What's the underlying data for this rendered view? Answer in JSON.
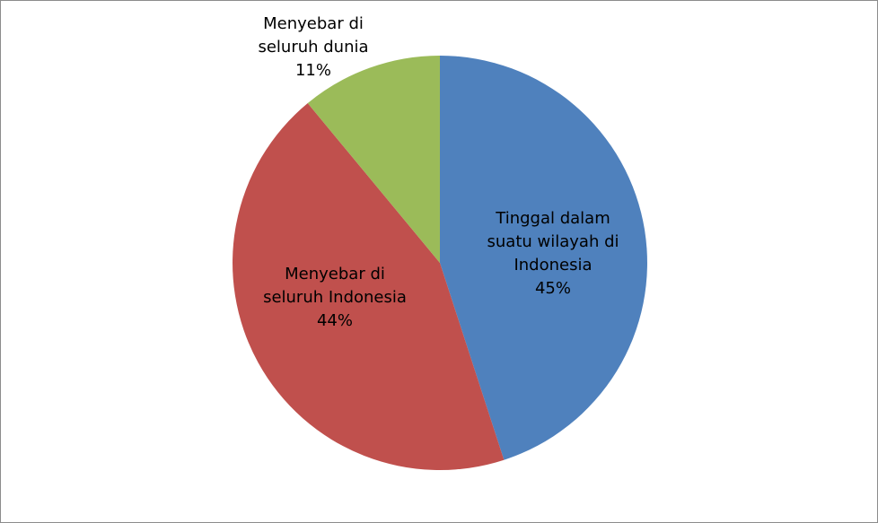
{
  "chart_data": {
    "type": "pie",
    "title": "",
    "slices": [
      {
        "label_lines": [
          "Tinggal dalam",
          "suatu wilayah di",
          "Indonesia"
        ],
        "percent_label": "45%",
        "value": 45,
        "color": "#4f81bd"
      },
      {
        "label_lines": [
          "Menyebar di",
          "seluruh Indonesia"
        ],
        "percent_label": "44%",
        "value": 44,
        "color": "#c0504d"
      },
      {
        "label_lines": [
          "Menyebar di",
          "seluruh dunia"
        ],
        "percent_label": "11%",
        "value": 11,
        "color": "#9bbb59"
      }
    ],
    "start_angle_deg": 0,
    "direction": "clockwise",
    "legend": "none"
  }
}
